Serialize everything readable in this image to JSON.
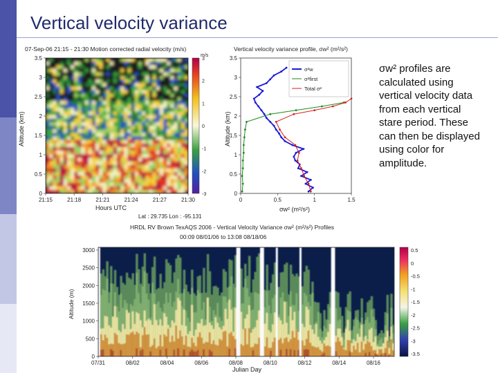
{
  "slide": {
    "title": "Vertical velocity variance",
    "body": "σw² profiles are calculated using vertical velocity data from each vertical stare period.  These can then be displayed using color for amplitude.",
    "theme_colors": [
      "#4a53a8",
      "#7f86c6",
      "#c3c7e6",
      "#e6e8f5"
    ]
  },
  "chart_data": [
    {
      "type": "heatmap",
      "title": "07-Sep-06 21:15 - 21:30 Motion corrected radial velocity (m/s)",
      "xlabel": "Hours UTC",
      "ylabel": "Altitude (km)",
      "x_ticks": [
        "21:15",
        "21:18",
        "21:21",
        "21:24",
        "21:27",
        "21:30"
      ],
      "y_ticks": [
        "0",
        "0.5",
        "1",
        "1.5",
        "2",
        "2.5",
        "3",
        "3.5"
      ],
      "ylim": [
        0,
        3.5
      ],
      "colorbar": {
        "unit": "m/s",
        "ticks": [
          "3",
          "2",
          "1",
          "0",
          "-1",
          "-2",
          "-3"
        ],
        "range": [
          -3,
          3
        ]
      },
      "footnote": "Lat :  29.735  Lon :  -95.131"
    },
    {
      "type": "line",
      "title": "Vertical velocity variance profile, σw² (m²/s²)",
      "xlabel": "σw² (m²/s²)",
      "ylabel": "Altitude (km)",
      "x_ticks": [
        "0",
        "0.5",
        "1",
        "1.5"
      ],
      "y_ticks": [
        "0",
        "0.5",
        "1",
        "1.5",
        "2",
        "2.5",
        "3",
        "3.5"
      ],
      "xlim": [
        0,
        1.5
      ],
      "ylim": [
        0,
        3.5
      ],
      "legend": [
        "σ²w",
        "σ²first",
        "Total σ²"
      ],
      "series": [
        {
          "name": "σ²w",
          "color": "#1a1ad6",
          "altitude": [
            0.05,
            0.15,
            0.25,
            0.35,
            0.45,
            0.55,
            0.65,
            0.75,
            0.85,
            0.95,
            1.05,
            1.15,
            1.25,
            1.35,
            1.45,
            1.55,
            1.65,
            1.75,
            1.85,
            1.95,
            2.05,
            2.15,
            2.25,
            2.35,
            2.45,
            2.55,
            2.65,
            2.75,
            2.85,
            2.95,
            3.05,
            3.15,
            3.25
          ],
          "values": [
            0.92,
            0.98,
            0.88,
            0.95,
            0.82,
            0.9,
            0.78,
            0.8,
            0.74,
            0.72,
            0.75,
            0.85,
            0.7,
            0.6,
            0.55,
            0.52,
            0.48,
            0.45,
            0.4,
            0.35,
            0.32,
            0.28,
            0.24,
            0.2,
            0.18,
            0.25,
            0.3,
            0.22,
            0.35,
            0.4,
            0.45,
            0.55,
            0.62
          ]
        },
        {
          "name": "σ²first",
          "color": "#1a8a1a",
          "altitude": [
            0.05,
            0.25,
            0.45,
            0.65,
            0.85,
            1.05,
            1.25,
            1.45,
            1.65,
            1.85,
            2.05,
            2.15,
            2.25,
            2.35
          ],
          "values": [
            0.02,
            0.03,
            0.02,
            0.03,
            0.03,
            0.04,
            0.04,
            0.05,
            0.06,
            0.08,
            0.4,
            0.75,
            1.1,
            1.4
          ]
        },
        {
          "name": "Total σ²",
          "color": "#d42020",
          "altitude": [
            0.05,
            0.25,
            0.45,
            0.65,
            0.85,
            1.05,
            1.25,
            1.45,
            1.65,
            1.85,
            2.05,
            2.15,
            2.25,
            2.35,
            2.45
          ],
          "values": [
            0.95,
            0.92,
            0.86,
            0.82,
            0.77,
            0.79,
            0.74,
            0.6,
            0.53,
            0.48,
            0.72,
            1.0,
            1.25,
            1.42,
            1.5
          ]
        }
      ]
    },
    {
      "type": "heatmap",
      "title": "HRDL RV Brown TexAQS 2006 - Vertical Velocity Variance σw² (m²/s²) Profiles",
      "subtitle": "00:09 08/01/06 to 13:08 08/18/06",
      "xlabel": "Julian Day",
      "ylabel": "Altitude (m)",
      "x_ticks": [
        "07/31",
        "08/02",
        "08/04",
        "08/06",
        "08/08",
        "08/10",
        "08/12",
        "08/14",
        "08/16"
      ],
      "y_ticks": [
        "0",
        "500",
        "1000",
        "1500",
        "2000",
        "2500",
        "3000"
      ],
      "ylim": [
        0,
        3000
      ],
      "colorbar": {
        "ticks": [
          "0.5",
          "0",
          "-0.5",
          "-1",
          "-1.5",
          "-2",
          "-2.5",
          "-3",
          "-3.5"
        ],
        "range": [
          -3.5,
          0.5
        ]
      }
    }
  ]
}
